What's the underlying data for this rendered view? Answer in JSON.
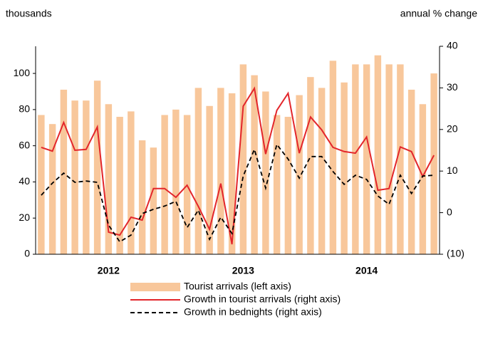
{
  "chart_data": {
    "type": "bar_line",
    "left_axis_label": "thousands",
    "right_axis_label": "annual % change",
    "categories": [
      null,
      null,
      null,
      null,
      null,
      null,
      "2012",
      null,
      null,
      null,
      null,
      null,
      null,
      null,
      null,
      null,
      null,
      null,
      "2013",
      null,
      null,
      null,
      null,
      null,
      null,
      null,
      null,
      null,
      null,
      "2014",
      null,
      null,
      null,
      null,
      null,
      null
    ],
    "ylim": [
      0,
      115
    ],
    "yticks": [
      0,
      20,
      40,
      60,
      80,
      100
    ],
    "y2lim": [
      -10,
      40
    ],
    "y2ticks": [
      {
        "value": -10,
        "label": "(10)"
      },
      0,
      10,
      20,
      30,
      40
    ],
    "series": [
      {
        "name": "Tourist arrivals (left axis)",
        "kind": "bar",
        "color": "#f8c79b",
        "values": [
          77,
          72,
          91,
          85,
          85,
          96,
          83,
          76,
          79,
          63,
          59,
          77,
          80,
          77,
          92,
          82,
          92,
          89,
          105,
          99,
          90,
          77,
          76,
          88,
          98,
          92,
          107,
          95,
          105,
          105,
          110,
          105,
          105,
          91,
          83,
          100
        ]
      },
      {
        "name": "Growth in tourist arrivals (right axis)",
        "kind": "line",
        "axis": "y2",
        "color": "#e3262b",
        "values": [
          15.7,
          14.8,
          21.7,
          15,
          15.2,
          20.6,
          -4.7,
          -5.4,
          -1.1,
          -1.8,
          5.8,
          5.8,
          3.7,
          6.6,
          1.5,
          -4,
          7,
          -7.6,
          25.6,
          29.9,
          14.1,
          24.6,
          28.7,
          14.3,
          23,
          19.9,
          15.7,
          14.7,
          14.3,
          18.2,
          5.4,
          5.8,
          15.8,
          14.7,
          8.7,
          13.8
        ]
      },
      {
        "name": "Growth in bednights (right axis)",
        "kind": "dashed",
        "axis": "y2",
        "color": "#000000",
        "values": [
          4.2,
          7.1,
          9.5,
          7.3,
          7.6,
          7.3,
          -3,
          -7,
          -5.4,
          -0.2,
          0.8,
          1.6,
          2.7,
          -3.6,
          0.6,
          -6.4,
          -1.1,
          -5,
          8.8,
          15.2,
          5.9,
          16.4,
          12.9,
          8.3,
          13.5,
          13.5,
          9.9,
          6.8,
          9,
          8,
          4,
          2,
          9,
          4.6,
          8.8,
          9
        ]
      }
    ]
  }
}
